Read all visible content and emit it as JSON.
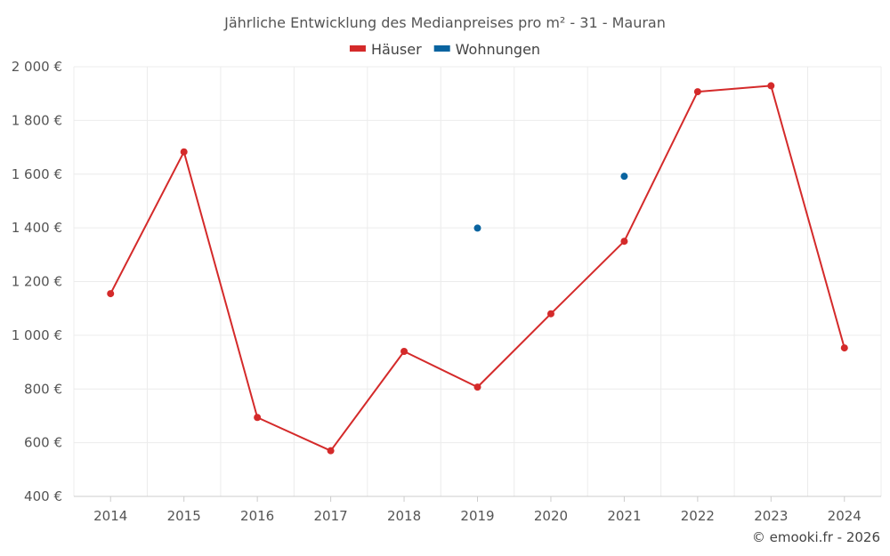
{
  "chart_data": {
    "type": "line",
    "title": "Jährliche Entwicklung des Medianpreises pro m² - 31 - Mauran",
    "categories": [
      "2014",
      "2015",
      "2016",
      "2017",
      "2018",
      "2019",
      "2020",
      "2021",
      "2022",
      "2023",
      "2024"
    ],
    "series": [
      {
        "name": "Häuser",
        "color": "#d42a2a",
        "values": [
          1155,
          1683,
          694,
          570,
          940,
          807,
          1080,
          1350,
          1907,
          1929,
          953
        ]
      },
      {
        "name": "Wohnungen",
        "color": "#0a64a0",
        "values": [
          null,
          null,
          null,
          null,
          null,
          1399,
          null,
          1592,
          null,
          null,
          null
        ]
      }
    ],
    "y_ticks": [
      400,
      600,
      800,
      1000,
      1200,
      1400,
      1600,
      1800,
      2000
    ],
    "y_tick_labels": [
      "400 €",
      "600 €",
      "800 €",
      "1 000 €",
      "1 200 €",
      "1 400 €",
      "1 600 €",
      "1 800 €",
      "2 000 €"
    ],
    "ylim": [
      400,
      2000
    ],
    "grid": true,
    "legend": "top-center",
    "footer": "© emooki.fr - 2026"
  }
}
